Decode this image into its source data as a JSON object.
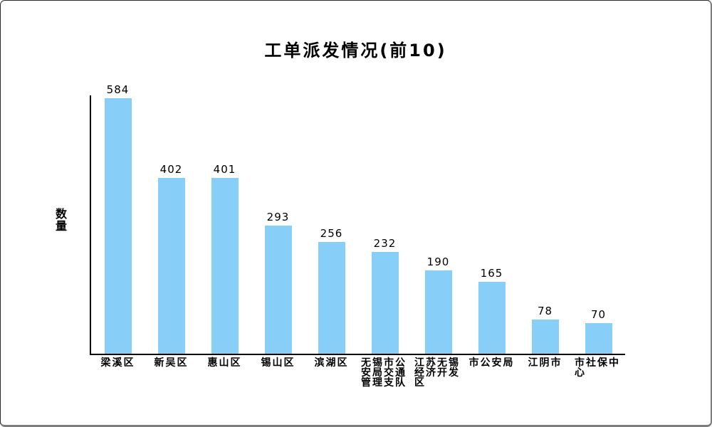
{
  "window": {
    "background": "#ffffff",
    "border_color": "#2a2a2a"
  },
  "chart_data": {
    "type": "bar",
    "title": "工单派发情况(前10)",
    "xlabel": "",
    "ylabel": "数量",
    "categories": [
      "梁溪区",
      "新吴区",
      "惠山区",
      "锡山区",
      "滨湖区",
      "无锡市公安局交通管理支队",
      "江苏无锡经济开发区",
      "市公安局",
      "江阴市",
      "市社保中心"
    ],
    "values": [
      584,
      402,
      401,
      293,
      256,
      232,
      190,
      165,
      78,
      70
    ],
    "bar_color": "#87CEF8",
    "text_color": "#000000",
    "axis_color": "#000000",
    "value_labels_shown": true,
    "grid": false,
    "legend": "none",
    "ylim": [
      0,
      600
    ]
  }
}
